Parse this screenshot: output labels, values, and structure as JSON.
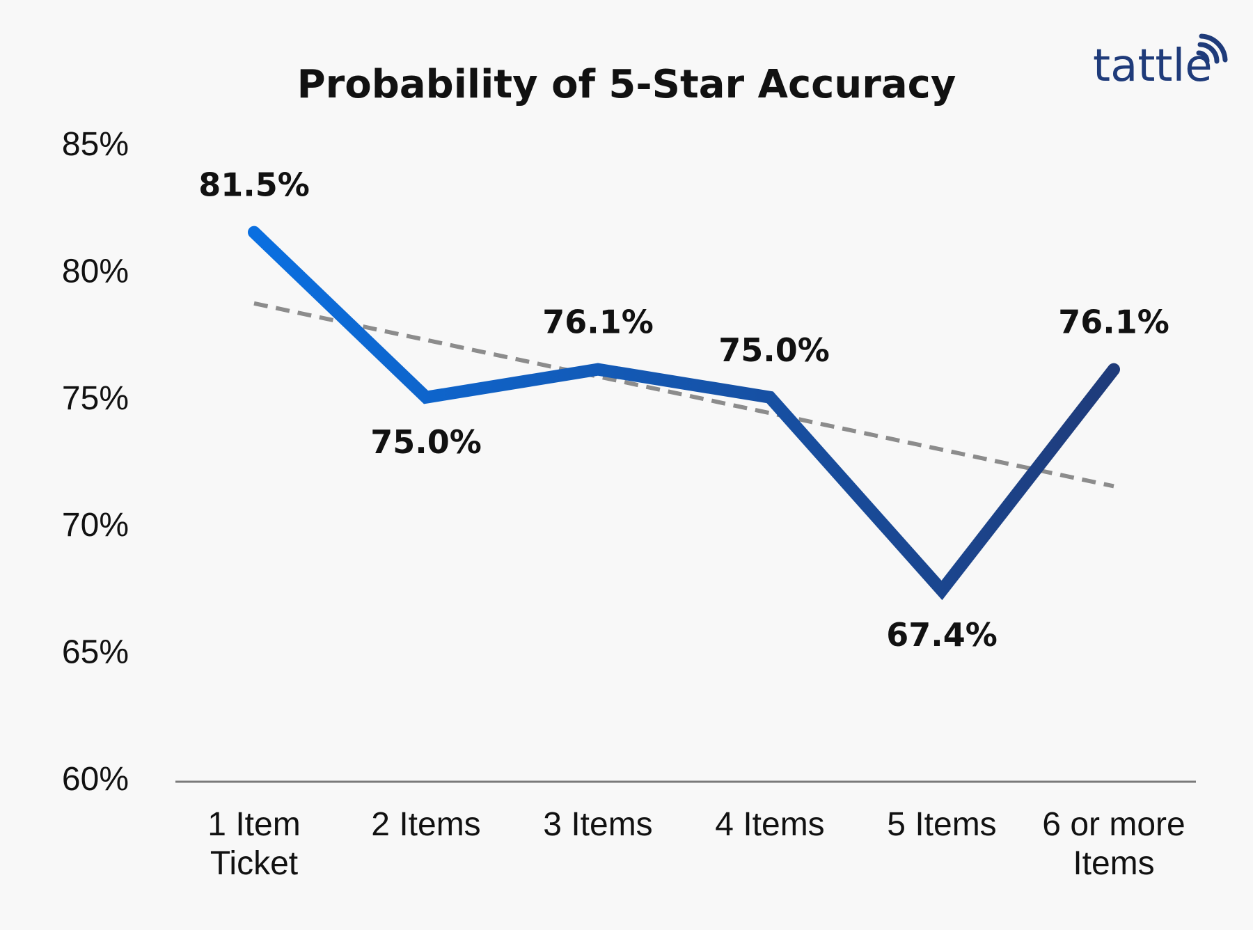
{
  "brand": {
    "logo_text": "tattle",
    "color": "#1f3b7a"
  },
  "chart_data": {
    "type": "line",
    "title": "Probability of 5-Star Accuracy",
    "xlabel": "",
    "ylabel": "",
    "categories": [
      [
        "1 Item",
        "Ticket"
      ],
      [
        "2 Items"
      ],
      [
        "3 Items"
      ],
      [
        "4 Items"
      ],
      [
        "5 Items"
      ],
      [
        "6 or more",
        "Items"
      ]
    ],
    "series": [
      {
        "values": [
          81.5,
          75.0,
          76.1,
          75.0,
          67.4,
          76.1
        ],
        "data_labels": [
          "81.5%",
          "75.0%",
          "76.1%",
          "75.0%",
          "67.4%",
          "76.1%"
        ],
        "label_position": [
          "above",
          "below",
          "above",
          "above",
          "below",
          "above"
        ],
        "color_start": "#0a6fe0",
        "color_end": "#1f3b7a"
      }
    ],
    "trendline": {
      "style": "dashed",
      "color": "#8c8c8c",
      "start": 78.7,
      "end": 71.5
    },
    "ylim": [
      60,
      85
    ],
    "yticks": [
      60,
      65,
      70,
      75,
      80,
      85
    ],
    "ytick_labels": [
      "60%",
      "65%",
      "70%",
      "75%",
      "80%",
      "85%"
    ],
    "grid": false
  }
}
